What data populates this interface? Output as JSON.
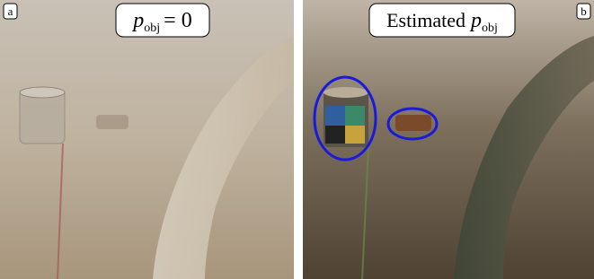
{
  "panels": [
    {
      "label": "a",
      "title": {
        "symbol": "p",
        "subscript": "obj",
        "suffix": "= 0"
      }
    },
    {
      "label": "b",
      "title": {
        "prefix": "Estimated",
        "symbol": "p",
        "subscript": "obj"
      }
    }
  ]
}
